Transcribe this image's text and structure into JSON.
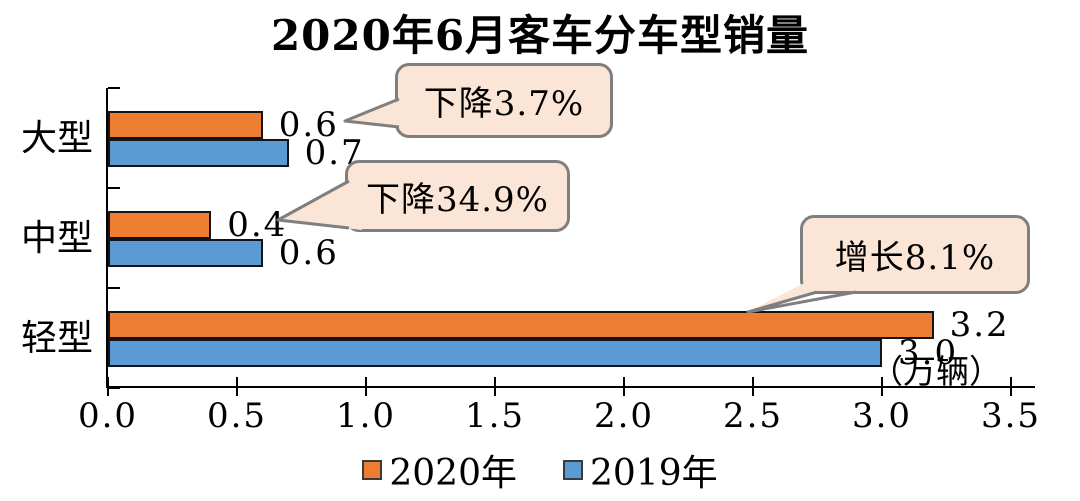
{
  "title": "2020年6月客车分车型销量",
  "chart_data": {
    "type": "bar",
    "orientation": "horizontal",
    "title": "2020年6月客车分车型销量",
    "unit_label": "（万辆）",
    "categories": [
      "大型",
      "中型",
      "轻型"
    ],
    "series": [
      {
        "name": "2020年",
        "color": "#ED7D31",
        "values": [
          0.6,
          0.4,
          3.2
        ],
        "labels": [
          "0.6",
          "0.4",
          "3.2"
        ]
      },
      {
        "name": "2019年",
        "color": "#5B9BD5",
        "values": [
          0.7,
          0.6,
          3.0
        ],
        "labels": [
          "0.7",
          "0.6",
          "3.0"
        ]
      }
    ],
    "xlim": [
      0,
      3.5
    ],
    "x_ticks": [
      "0.0",
      "0.5",
      "1.0",
      "1.5",
      "2.0",
      "2.5",
      "3.0",
      "3.5"
    ],
    "grid": "off",
    "legend_position": "bottom",
    "annotations": [
      {
        "text": "下降3.7%",
        "target_category": "大型"
      },
      {
        "text": "下降34.9%",
        "target_category": "中型"
      },
      {
        "text": "增长8.1%",
        "target_category": "轻型"
      }
    ],
    "annotation_style": {
      "fill": "#FBE5D6",
      "border": "#7F7F7F"
    },
    "bar_border_color": "#141414"
  }
}
